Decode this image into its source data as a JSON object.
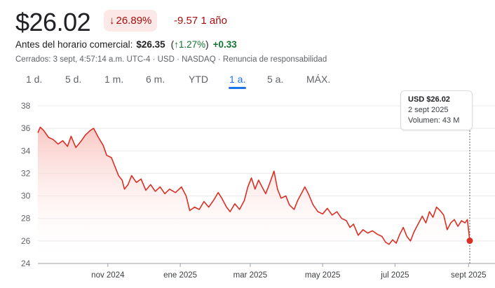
{
  "quote": {
    "price": "$26.02",
    "change_pct": "26.89%",
    "change_arrow": "↓",
    "change_abs": "-9.57",
    "period_label": "1 año",
    "premarket_label": "Antes del horario comercial:",
    "premarket_price": "$26.35",
    "premarket_pct_open": "(",
    "premarket_arrow": "↑",
    "premarket_pct": "1.27%",
    "premarket_pct_close": ")",
    "premarket_abs": "+0.33",
    "meta": "Cerrados: 3 sept, 4:57:14 a.m. UTC-4 · USD · NASDAQ · Renuncia de responsabilidad"
  },
  "tabs": [
    {
      "label": "1 d."
    },
    {
      "label": "5 d."
    },
    {
      "label": "1 m."
    },
    {
      "label": "6 m."
    },
    {
      "label": "YTD"
    },
    {
      "label": "1 a.",
      "active": true
    },
    {
      "label": "5 a."
    },
    {
      "label": "MÁX."
    }
  ],
  "tooltip": {
    "price": "USD $26.02",
    "date": "2 sept 2025",
    "volume": "Volumen: 43 M"
  },
  "colors": {
    "line": "#d93025",
    "fill_top": "#f9c2bd",
    "down": "#a50e0e",
    "up": "#137333",
    "accent": "#1a73e8"
  },
  "chart_data": {
    "type": "area",
    "ylim": [
      24,
      38
    ],
    "yticks": [
      24,
      26,
      28,
      30,
      32,
      34,
      36,
      38
    ],
    "xlim": [
      "2024-09-03",
      "2025-09-02"
    ],
    "xticks": [
      {
        "date": "2024-11-01",
        "label": "nov 2024"
      },
      {
        "date": "2025-01-01",
        "label": "ene 2025"
      },
      {
        "date": "2025-03-01",
        "label": "mar 2025"
      },
      {
        "date": "2025-05-01",
        "label": "may 2025"
      },
      {
        "date": "2025-07-01",
        "label": "jul 2025"
      },
      {
        "date": "2025-09-01",
        "label": "sept 2025"
      }
    ],
    "grid": true,
    "points": [
      [
        "2024-09-03",
        35.6
      ],
      [
        "2024-09-05",
        36.1
      ],
      [
        "2024-09-08",
        35.8
      ],
      [
        "2024-09-12",
        35.2
      ],
      [
        "2024-09-16",
        35.0
      ],
      [
        "2024-09-20",
        34.6
      ],
      [
        "2024-09-24",
        34.9
      ],
      [
        "2024-09-28",
        34.4
      ],
      [
        "2024-10-01",
        35.3
      ],
      [
        "2024-10-05",
        34.3
      ],
      [
        "2024-10-09",
        34.8
      ],
      [
        "2024-10-13",
        35.4
      ],
      [
        "2024-10-17",
        35.8
      ],
      [
        "2024-10-20",
        36.0
      ],
      [
        "2024-10-24",
        35.2
      ],
      [
        "2024-10-28",
        34.5
      ],
      [
        "2024-10-31",
        33.6
      ],
      [
        "2024-11-04",
        33.4
      ],
      [
        "2024-11-07",
        32.6
      ],
      [
        "2024-11-10",
        31.8
      ],
      [
        "2024-11-13",
        31.4
      ],
      [
        "2024-11-15",
        30.6
      ],
      [
        "2024-11-18",
        31.0
      ],
      [
        "2024-11-21",
        31.8
      ],
      [
        "2024-11-25",
        31.2
      ],
      [
        "2024-11-29",
        31.5
      ],
      [
        "2024-12-03",
        30.5
      ],
      [
        "2024-12-07",
        31.0
      ],
      [
        "2024-12-11",
        30.4
      ],
      [
        "2024-12-15",
        30.8
      ],
      [
        "2024-12-19",
        30.2
      ],
      [
        "2024-12-23",
        30.6
      ],
      [
        "2024-12-28",
        30.3
      ],
      [
        "2025-01-02",
        30.8
      ],
      [
        "2025-01-06",
        30.0
      ],
      [
        "2025-01-09",
        28.7
      ],
      [
        "2025-01-13",
        29.0
      ],
      [
        "2025-01-17",
        28.8
      ],
      [
        "2025-01-21",
        29.5
      ],
      [
        "2025-01-25",
        29.0
      ],
      [
        "2025-01-29",
        29.6
      ],
      [
        "2025-02-02",
        30.3
      ],
      [
        "2025-02-05",
        29.8
      ],
      [
        "2025-02-09",
        29.0
      ],
      [
        "2025-02-12",
        28.6
      ],
      [
        "2025-02-16",
        29.3
      ],
      [
        "2025-02-20",
        28.8
      ],
      [
        "2025-02-24",
        29.6
      ],
      [
        "2025-02-27",
        30.8
      ],
      [
        "2025-03-02",
        31.6
      ],
      [
        "2025-03-05",
        30.6
      ],
      [
        "2025-03-08",
        31.4
      ],
      [
        "2025-03-11",
        30.8
      ],
      [
        "2025-03-14",
        30.2
      ],
      [
        "2025-03-17",
        31.0
      ],
      [
        "2025-03-21",
        32.2
      ],
      [
        "2025-03-24",
        30.6
      ],
      [
        "2025-03-27",
        29.8
      ],
      [
        "2025-03-31",
        30.0
      ],
      [
        "2025-04-03",
        29.2
      ],
      [
        "2025-04-07",
        28.8
      ],
      [
        "2025-04-10",
        29.6
      ],
      [
        "2025-04-13",
        30.2
      ],
      [
        "2025-04-16",
        30.8
      ],
      [
        "2025-04-19",
        30.2
      ],
      [
        "2025-04-23",
        29.2
      ],
      [
        "2025-04-27",
        28.6
      ],
      [
        "2025-05-01",
        28.4
      ],
      [
        "2025-05-05",
        28.9
      ],
      [
        "2025-05-09",
        28.3
      ],
      [
        "2025-05-13",
        28.6
      ],
      [
        "2025-05-17",
        28.0
      ],
      [
        "2025-05-21",
        27.8
      ],
      [
        "2025-05-24",
        27.2
      ],
      [
        "2025-05-27",
        27.5
      ],
      [
        "2025-05-31",
        26.5
      ],
      [
        "2025-06-04",
        27.0
      ],
      [
        "2025-06-08",
        26.7
      ],
      [
        "2025-06-12",
        26.9
      ],
      [
        "2025-06-16",
        26.6
      ],
      [
        "2025-06-20",
        26.4
      ],
      [
        "2025-06-23",
        25.9
      ],
      [
        "2025-06-26",
        25.7
      ],
      [
        "2025-06-29",
        26.1
      ],
      [
        "2025-07-02",
        25.8
      ],
      [
        "2025-07-05",
        26.6
      ],
      [
        "2025-07-08",
        27.2
      ],
      [
        "2025-07-11",
        26.4
      ],
      [
        "2025-07-14",
        26.0
      ],
      [
        "2025-07-17",
        26.8
      ],
      [
        "2025-07-20",
        27.4
      ],
      [
        "2025-07-24",
        28.2
      ],
      [
        "2025-07-27",
        27.6
      ],
      [
        "2025-07-30",
        28.6
      ],
      [
        "2025-08-02",
        28.1
      ],
      [
        "2025-08-05",
        29.0
      ],
      [
        "2025-08-08",
        28.7
      ],
      [
        "2025-08-11",
        28.3
      ],
      [
        "2025-08-14",
        27.0
      ],
      [
        "2025-08-17",
        27.6
      ],
      [
        "2025-08-20",
        27.9
      ],
      [
        "2025-08-23",
        27.3
      ],
      [
        "2025-08-26",
        27.8
      ],
      [
        "2025-08-29",
        27.6
      ],
      [
        "2025-08-31",
        27.9
      ],
      [
        "2025-09-02",
        26.02
      ]
    ]
  }
}
